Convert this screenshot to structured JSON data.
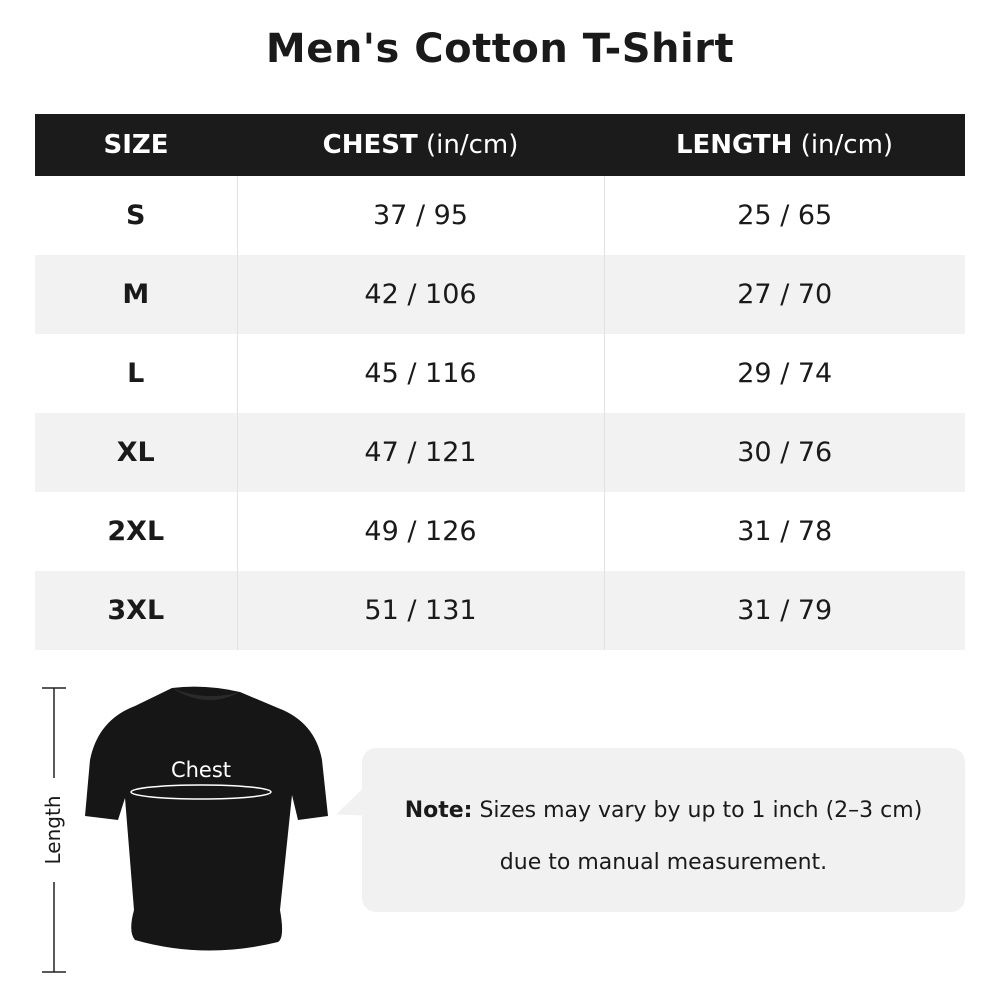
{
  "title": "Men's Cotton T-Shirt",
  "table": {
    "headers": [
      {
        "label": "SIZE",
        "unit": ""
      },
      {
        "label": "CHEST",
        "unit": " (in/cm)"
      },
      {
        "label": "LENGTH",
        "unit": " (in/cm)"
      }
    ],
    "rows": [
      {
        "size": "S",
        "chest": "37 / 95",
        "length": "25 / 65"
      },
      {
        "size": "M",
        "chest": "42 / 106",
        "length": "27 / 70"
      },
      {
        "size": "L",
        "chest": "45 / 116",
        "length": "29 / 74"
      },
      {
        "size": "XL",
        "chest": "47 / 121",
        "length": "30 / 76"
      },
      {
        "size": "2XL",
        "chest": "49 / 126",
        "length": "31 / 78"
      },
      {
        "size": "3XL",
        "chest": "51 / 131",
        "length": "31 / 79"
      }
    ]
  },
  "diagram": {
    "chest_label": "Chest",
    "length_label": "Length"
  },
  "note": {
    "prefix": "Note:",
    "line1": " Sizes may vary by up to 1 inch (2–3 cm)",
    "line2": "due to manual measurement."
  },
  "colors": {
    "header_bg": "#1b1b1b",
    "alt_row": "#f2f2f2",
    "note_bg": "#f1f1f1"
  }
}
